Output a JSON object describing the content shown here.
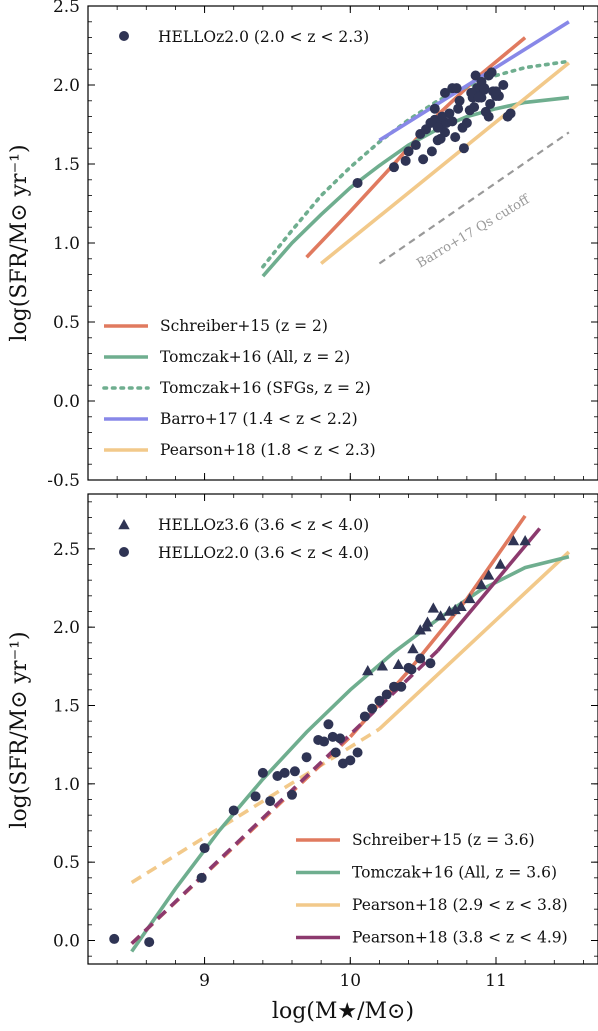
{
  "chart_data": [
    {
      "type": "scatter",
      "xlim": [
        8.2,
        11.7
      ],
      "ylim": [
        -0.5,
        2.5
      ],
      "yticks": [
        -0.5,
        0.0,
        0.5,
        1.0,
        1.5,
        2.0,
        2.5
      ],
      "ytick_labels": [
        "-0.5",
        "0.0",
        "0.5",
        "1.0",
        "1.5",
        "2.0",
        "2.5"
      ],
      "xticks": [
        9,
        10,
        11
      ],
      "ylabel": "log(SFR/M⊙ yr⁻¹)",
      "legend_top": [
        {
          "label": "HELLOz2.0 (2.0 < z < 2.3)",
          "marker": "circle",
          "color": "#2f3454"
        }
      ],
      "legend_bottom": [
        {
          "label": "Schreiber+15 (z = 2)",
          "color": "#e07a5f",
          "style": "solid"
        },
        {
          "label": "Tomczak+16 (All, z = 2)",
          "color": "#6fae8f",
          "style": "solid"
        },
        {
          "label": "Tomczak+16 (SFGs, z = 2)",
          "color": "#6fae8f",
          "style": "dotted"
        },
        {
          "label": "Barro+17 (1.4 < z < 2.2)",
          "color": "#8888e8",
          "style": "solid"
        },
        {
          "label": "Pearson+18 (1.8 < z < 2.3)",
          "color": "#f2c98a",
          "style": "solid"
        }
      ],
      "annotation": "Barro+17 Qs cutoff",
      "lines": [
        {
          "name": "Schreiber+15 (z = 2)",
          "color": "#e07a5f",
          "style": "solid",
          "x": [
            9.7,
            10.0,
            10.3,
            10.6,
            10.9,
            11.2
          ],
          "y": [
            0.91,
            1.2,
            1.5,
            1.81,
            2.07,
            2.3
          ]
        },
        {
          "name": "Tomczak+16 (All, z = 2)",
          "color": "#6fae8f",
          "style": "solid",
          "x": [
            9.4,
            9.6,
            9.8,
            10.0,
            10.2,
            10.4,
            10.6,
            10.8,
            11.0,
            11.2,
            11.5
          ],
          "y": [
            0.79,
            1.0,
            1.18,
            1.35,
            1.49,
            1.62,
            1.72,
            1.8,
            1.85,
            1.89,
            1.92
          ]
        },
        {
          "name": "Tomczak+16 (SFGs, z = 2)",
          "color": "#6fae8f",
          "style": "dotted",
          "x": [
            9.4,
            9.6,
            9.8,
            10.0,
            10.2,
            10.4,
            10.6,
            10.8,
            11.0,
            11.2,
            11.5
          ],
          "y": [
            0.85,
            1.08,
            1.3,
            1.48,
            1.64,
            1.78,
            1.9,
            1.99,
            2.06,
            2.11,
            2.15
          ]
        },
        {
          "name": "Barro+17 (1.4 < z < 2.2)",
          "color": "#8888e8",
          "style": "solid",
          "x": [
            10.2,
            11.5
          ],
          "y": [
            1.65,
            2.4
          ]
        },
        {
          "name": "Pearson+18 (1.8 < z < 2.3)",
          "color": "#f2c98a",
          "style": "solid",
          "x": [
            9.8,
            11.5
          ],
          "y": [
            0.87,
            2.14
          ]
        },
        {
          "name": "Barro+17 Qs cutoff",
          "color": "#999999",
          "style": "dashed",
          "x": [
            10.2,
            11.5
          ],
          "y": [
            0.87,
            1.7
          ]
        }
      ],
      "points": {
        "name": "HELLOz2.0 (2.0 < z < 2.3)",
        "marker": "circle",
        "x": [
          10.05,
          10.3,
          10.38,
          10.4,
          10.45,
          10.48,
          10.52,
          10.55,
          10.58,
          10.6,
          10.62,
          10.65,
          10.66,
          10.68,
          10.7,
          10.72,
          10.74,
          10.75,
          10.77,
          10.8,
          10.82,
          10.84,
          10.85,
          10.87,
          10.88,
          10.9,
          10.92,
          10.93,
          10.95,
          10.96,
          10.98,
          11.0,
          11.02,
          11.05,
          11.08,
          11.1,
          10.5,
          10.56,
          10.6,
          10.63,
          10.65,
          10.7,
          10.73,
          10.78,
          10.83,
          10.86,
          10.88,
          10.9,
          10.92,
          10.95,
          10.97,
          11.0,
          10.58,
          10.62
        ],
        "y": [
          1.38,
          1.48,
          1.52,
          1.58,
          1.62,
          1.69,
          1.72,
          1.76,
          1.78,
          1.65,
          1.75,
          1.7,
          1.76,
          1.82,
          1.77,
          1.67,
          1.85,
          1.9,
          1.73,
          1.76,
          1.84,
          1.92,
          1.86,
          1.98,
          1.93,
          1.92,
          1.97,
          1.83,
          1.8,
          1.88,
          1.96,
          1.93,
          1.93,
          2.0,
          1.8,
          1.82,
          1.53,
          1.58,
          1.73,
          1.8,
          1.95,
          1.98,
          1.98,
          1.6,
          1.95,
          2.06,
          1.92,
          2.02,
          1.98,
          2.06,
          2.08,
          1.96,
          1.85,
          1.66
        ]
      }
    },
    {
      "type": "scatter",
      "xlim": [
        8.2,
        11.7
      ],
      "ylim": [
        -0.15,
        2.85
      ],
      "yticks": [
        0.0,
        0.5,
        1.0,
        1.5,
        2.0,
        2.5
      ],
      "ytick_labels": [
        "0.0",
        "0.5",
        "1.0",
        "1.5",
        "2.0",
        "2.5"
      ],
      "xticks": [
        9,
        10,
        11
      ],
      "xtick_labels": [
        "9",
        "10",
        "11"
      ],
      "xlabel": "log(M★/M⊙)",
      "ylabel": "log(SFR/M⊙ yr⁻¹)",
      "legend_top": [
        {
          "label": "HELLOz3.6 (3.6 < z < 4.0)",
          "marker": "triangle",
          "color": "#2f3454"
        },
        {
          "label": "HELLOz2.0 (3.6 < z < 4.0)",
          "marker": "circle",
          "color": "#2f3454"
        }
      ],
      "legend_bottom": [
        {
          "label": "Schreiber+15 (z = 3.6)",
          "color": "#e07a5f",
          "style": "solid"
        },
        {
          "label": "Tomczak+16 (All, z = 3.6)",
          "color": "#6fae8f",
          "style": "solid"
        },
        {
          "label": "Pearson+18 (2.9 < z < 3.8)",
          "color": "#f2c98a",
          "style": "solid"
        },
        {
          "label": "Pearson+18 (3.8 < z < 4.9)",
          "color": "#8c3a6e",
          "style": "solid"
        }
      ],
      "lines": [
        {
          "name": "Pearson+18 (2.9 < z < 3.8) dashed ext",
          "color": "#f2c98a",
          "style": "dashed",
          "x": [
            8.5,
            10.2
          ],
          "y": [
            0.37,
            1.35
          ]
        },
        {
          "name": "Pearson+18 (2.9 < z < 3.8)",
          "color": "#f2c98a",
          "style": "solid",
          "x": [
            10.2,
            11.5
          ],
          "y": [
            1.35,
            2.48
          ]
        },
        {
          "name": "Tomczak+16 (All, z = 3.6)",
          "color": "#6fae8f",
          "style": "solid",
          "x": [
            8.5,
            8.8,
            9.1,
            9.4,
            9.7,
            10.0,
            10.3,
            10.6,
            10.9,
            11.2,
            11.5
          ],
          "y": [
            -0.07,
            0.33,
            0.7,
            1.03,
            1.33,
            1.6,
            1.84,
            2.05,
            2.24,
            2.38,
            2.45
          ]
        },
        {
          "name": "Schreiber+15 (z = 3.6) dashed ext",
          "color": "#e07a5f",
          "style": "dashed",
          "x": [
            8.5,
            10.0
          ],
          "y": [
            -0.02,
            1.3
          ]
        },
        {
          "name": "Schreiber+15 (z = 3.6)",
          "color": "#e07a5f",
          "style": "solid",
          "x": [
            10.0,
            10.4,
            10.8,
            11.2
          ],
          "y": [
            1.3,
            1.72,
            2.18,
            2.71
          ]
        },
        {
          "name": "Pearson+18 (3.8 < z < 4.9) dashed ext",
          "color": "#8c3a6e",
          "style": "dashed",
          "x": [
            8.5,
            10.6
          ],
          "y": [
            -0.02,
            1.85
          ]
        },
        {
          "name": "Pearson+18 (3.8 < z < 4.9)",
          "color": "#8c3a6e",
          "style": "solid",
          "x": [
            10.6,
            11.3
          ],
          "y": [
            1.85,
            2.63
          ]
        }
      ],
      "triangles": {
        "name": "HELLOz3.6 (3.6 < z < 4.0)",
        "x": [
          10.12,
          10.22,
          10.33,
          10.43,
          10.48,
          10.53,
          10.62,
          10.68,
          10.72,
          10.82,
          10.9,
          10.95,
          11.03,
          11.12,
          11.2,
          10.57,
          10.76,
          10.52
        ],
        "y": [
          1.72,
          1.75,
          1.76,
          1.86,
          1.98,
          2.03,
          2.07,
          2.1,
          2.11,
          2.18,
          2.27,
          2.33,
          2.4,
          2.55,
          2.55,
          2.12,
          2.13,
          2.0
        ]
      },
      "circles": {
        "name": "HELLOz2.0 (3.6 < z < 4.0)",
        "x": [
          8.38,
          8.62,
          8.98,
          9.0,
          9.2,
          9.35,
          9.4,
          9.45,
          9.5,
          9.55,
          9.6,
          9.62,
          9.7,
          9.78,
          9.82,
          9.85,
          9.9,
          9.95,
          10.0,
          10.05,
          10.1,
          10.15,
          10.2,
          10.25,
          10.3,
          10.35,
          10.4,
          10.42,
          10.48,
          10.55,
          9.88,
          9.93
        ],
        "y": [
          0.01,
          -0.01,
          0.4,
          0.59,
          0.83,
          0.92,
          1.07,
          0.89,
          1.05,
          1.07,
          0.93,
          1.08,
          1.17,
          1.28,
          1.27,
          1.38,
          1.2,
          1.13,
          1.15,
          1.2,
          1.43,
          1.48,
          1.53,
          1.57,
          1.62,
          1.62,
          1.74,
          1.73,
          1.8,
          1.77,
          1.3,
          1.29
        ]
      }
    }
  ]
}
